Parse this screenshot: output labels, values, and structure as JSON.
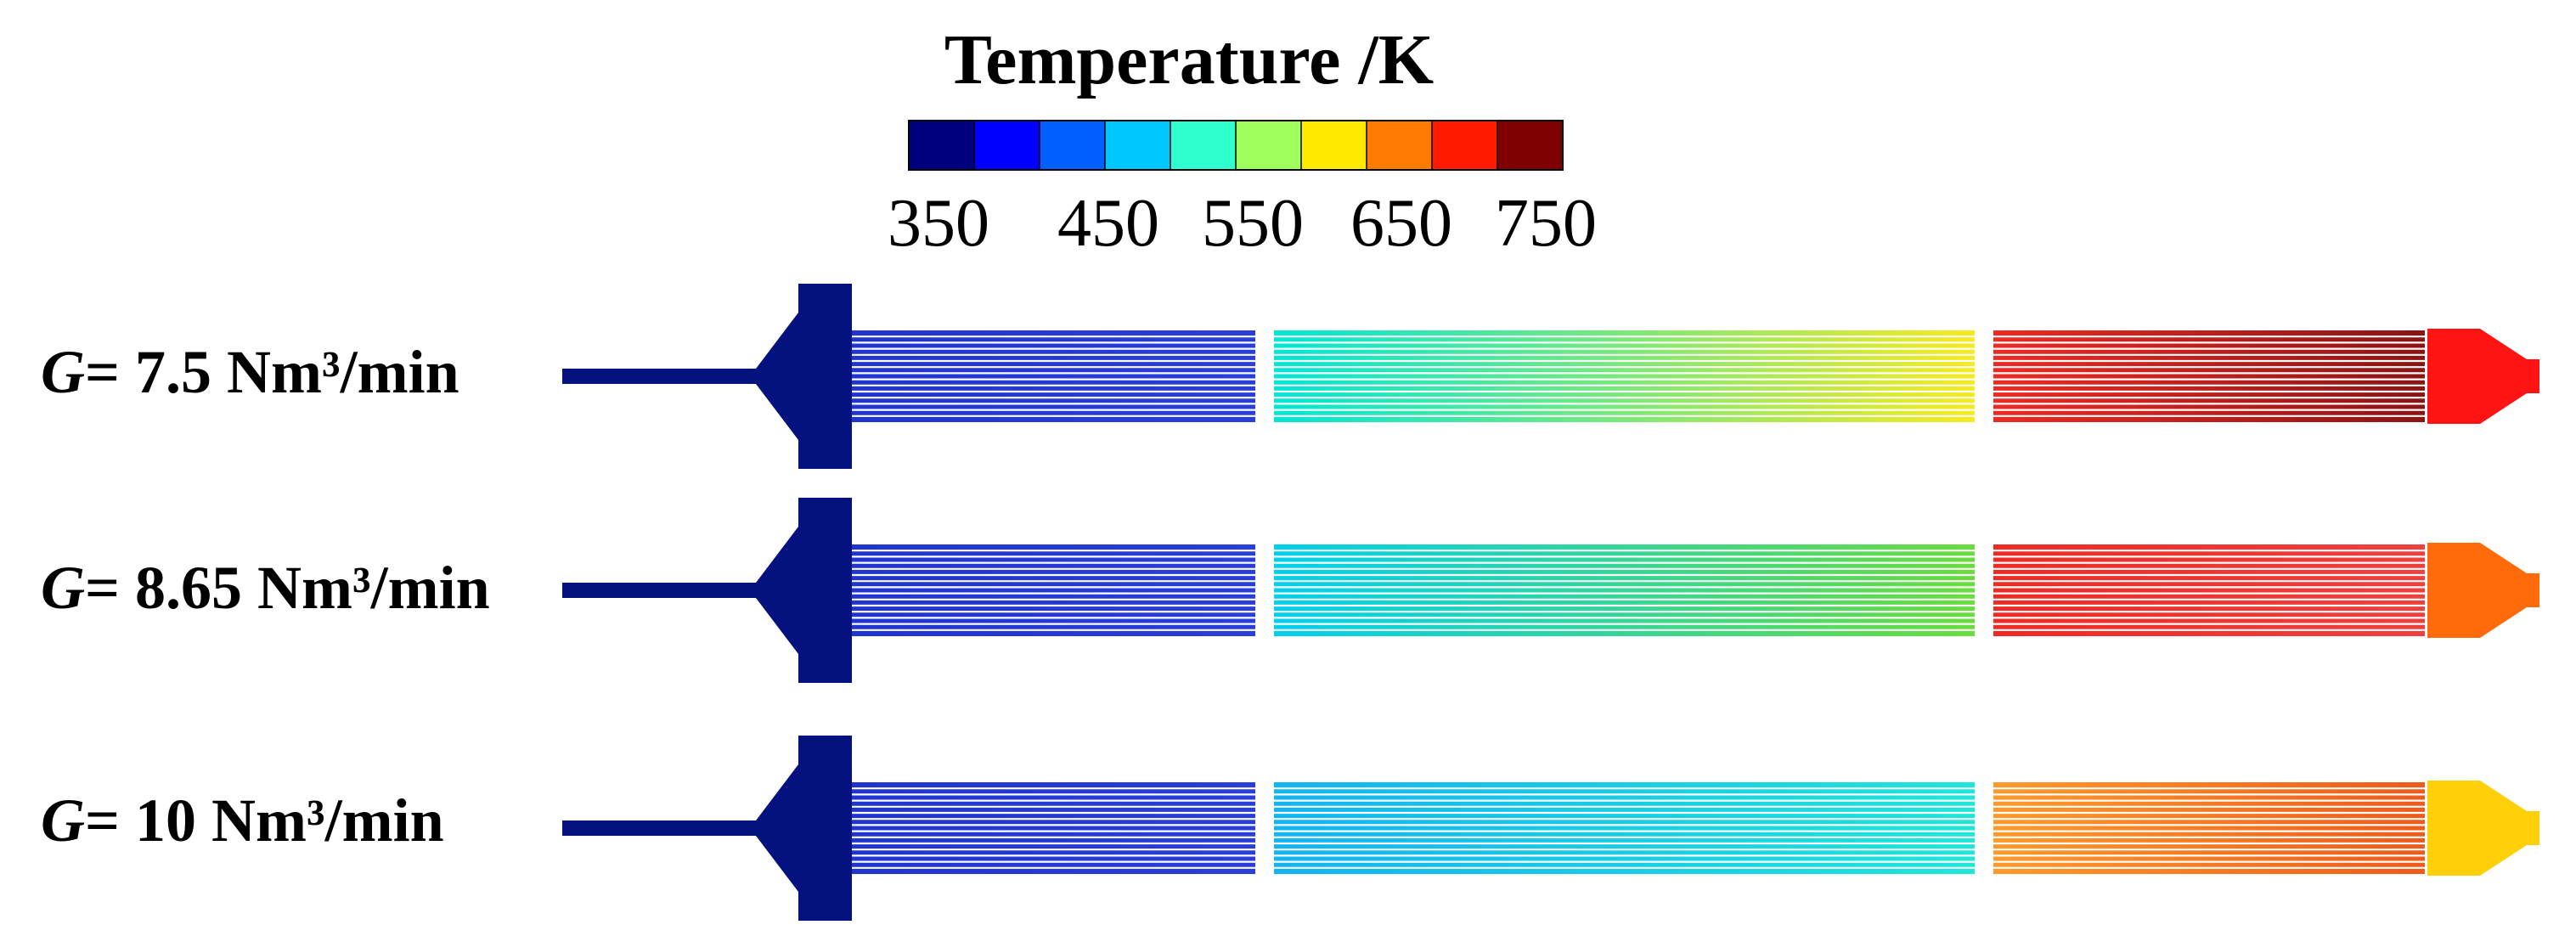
{
  "colorbar": {
    "title": "Temperature /K",
    "ticks": [
      "350",
      "450",
      "550",
      "650",
      "750"
    ],
    "min": 350,
    "max": 750,
    "colors": [
      "#00007f",
      "#0000ff",
      "#0060ff",
      "#00c8ff",
      "#2fffcf",
      "#a0ff5f",
      "#ffea00",
      "#ff7a00",
      "#ff1a00",
      "#7f0000"
    ]
  },
  "rows": [
    {
      "symbol": "G",
      "label": "= 7.5 Nm³/min",
      "inlet_color": "#04127f",
      "sections": [
        {
          "start": "#2035cf",
          "end": "#2a3ed8"
        },
        {
          "start": "#00e6d6",
          "end": "#f7ea1e"
        },
        {
          "start": "#ee2a24",
          "end": "#8b1414"
        }
      ],
      "outlet_color": "#ff1414"
    },
    {
      "symbol": "G",
      "label": "= 8.65 Nm³/min",
      "inlet_color": "#04127f",
      "sections": [
        {
          "start": "#2035cf",
          "end": "#2a3ed8"
        },
        {
          "start": "#00d0ee",
          "end": "#6adc3c"
        },
        {
          "start": "#ee2a24",
          "end": "#ee4040"
        }
      ],
      "outlet_color": "#ff6a0a"
    },
    {
      "symbol": "G",
      "label": "= 10 Nm³/min",
      "inlet_color": "#04127f",
      "sections": [
        {
          "start": "#2035cf",
          "end": "#2a3ed8"
        },
        {
          "start": "#12b4f2",
          "end": "#1ee6d8"
        },
        {
          "start": "#ff9a2a",
          "end": "#ee5a1a"
        }
      ],
      "outlet_color": "#ffd00a"
    }
  ]
}
